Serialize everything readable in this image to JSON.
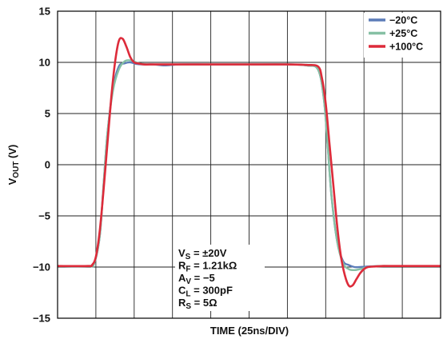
{
  "chart_data": {
    "type": "line",
    "xlabel": "TIME (25ns/DIV)",
    "ylabel": {
      "main": "V",
      "sub": "OUT",
      "suffix": " (V)"
    },
    "ylim": [
      -15,
      15
    ],
    "y_ticks": [
      "15",
      "10",
      "5",
      "0",
      "−5",
      "−10",
      "−15"
    ],
    "x_range_div": [
      0,
      10
    ],
    "x_unit_per_div": "25ns",
    "grid": true,
    "legend_position": "top-right",
    "series": [
      {
        "name": "−20°C",
        "color": "#5b7cb8",
        "x": [
          0,
          0.8,
          0.95,
          1.1,
          1.2,
          1.3,
          1.45,
          1.6,
          1.75,
          1.9,
          2.05,
          2.2,
          2.5,
          2.8,
          3.2,
          4.0,
          5.0,
          6.0,
          6.5,
          6.8,
          6.95,
          7.05,
          7.15,
          7.3,
          7.45,
          7.6,
          7.75,
          7.9,
          8.1,
          8.4,
          8.8,
          9.3,
          10
        ],
        "y": [
          -9.9,
          -9.9,
          -9.7,
          -7,
          -2,
          3,
          7.5,
          9.6,
          9.9,
          10,
          9.85,
          9.8,
          9.8,
          9.7,
          9.8,
          9.8,
          9.8,
          9.8,
          9.7,
          9.3,
          6.5,
          2,
          -3,
          -7.5,
          -9.4,
          -9.8,
          -10,
          -10,
          -9.95,
          -9.9,
          -9.9,
          -9.9,
          -9.9
        ]
      },
      {
        "name": "+25°C",
        "color": "#86c0a4",
        "x": [
          0,
          0.8,
          0.95,
          1.1,
          1.2,
          1.3,
          1.45,
          1.6,
          1.75,
          1.9,
          2.05,
          2.2,
          2.5,
          2.8,
          3.2,
          4.0,
          5.0,
          6.0,
          6.5,
          6.8,
          6.95,
          7.05,
          7.15,
          7.3,
          7.45,
          7.6,
          7.75,
          7.9,
          8.1,
          8.4,
          8.8,
          9.3,
          10
        ],
        "y": [
          -9.9,
          -9.9,
          -9.7,
          -7,
          -2,
          3,
          7.3,
          9.3,
          10.1,
          10.2,
          10,
          9.85,
          9.8,
          9.8,
          9.8,
          9.8,
          9.8,
          9.8,
          9.7,
          9.3,
          6.5,
          2,
          -3,
          -7.5,
          -9.6,
          -10.2,
          -10.3,
          -10.2,
          -10,
          -9.9,
          -9.9,
          -9.9,
          -9.9
        ]
      },
      {
        "name": "+100°C",
        "color": "#dd2b3a",
        "x": [
          0,
          0.8,
          0.9,
          1.0,
          1.1,
          1.2,
          1.3,
          1.4,
          1.5,
          1.6,
          1.7,
          1.8,
          1.9,
          2.0,
          2.1,
          2.25,
          2.5,
          2.8,
          3.2,
          4.0,
          5.0,
          6.0,
          6.5,
          6.8,
          6.9,
          7.0,
          7.1,
          7.2,
          7.3,
          7.4,
          7.5,
          7.6,
          7.7,
          7.8,
          7.9,
          8.0,
          8.1,
          8.25,
          8.5,
          8.8,
          9.3,
          10
        ],
        "y": [
          -9.9,
          -9.9,
          -9.8,
          -9,
          -6.5,
          -2.5,
          2,
          6.5,
          10,
          12.1,
          12.3,
          11.5,
          10.5,
          10,
          9.9,
          9.8,
          9.8,
          9.8,
          9.8,
          9.8,
          9.8,
          9.8,
          9.75,
          9.6,
          8.5,
          6,
          2,
          -2,
          -6,
          -9,
          -10.8,
          -11.8,
          -11.8,
          -11.2,
          -10.6,
          -10.2,
          -10,
          -9.95,
          -9.9,
          -9.9,
          -9.9,
          -9.9
        ]
      }
    ],
    "conditions": [
      {
        "main": "V",
        "sub": "S",
        "rest": " = ±20V"
      },
      {
        "main": "R",
        "sub": "F",
        "rest": " = 1.21kΩ"
      },
      {
        "main": "A",
        "sub": "V",
        "rest": " = −5"
      },
      {
        "main": "C",
        "sub": "L",
        "rest": " = 300pF"
      },
      {
        "main": "R",
        "sub": "S",
        "rest": " = 5Ω"
      }
    ]
  }
}
